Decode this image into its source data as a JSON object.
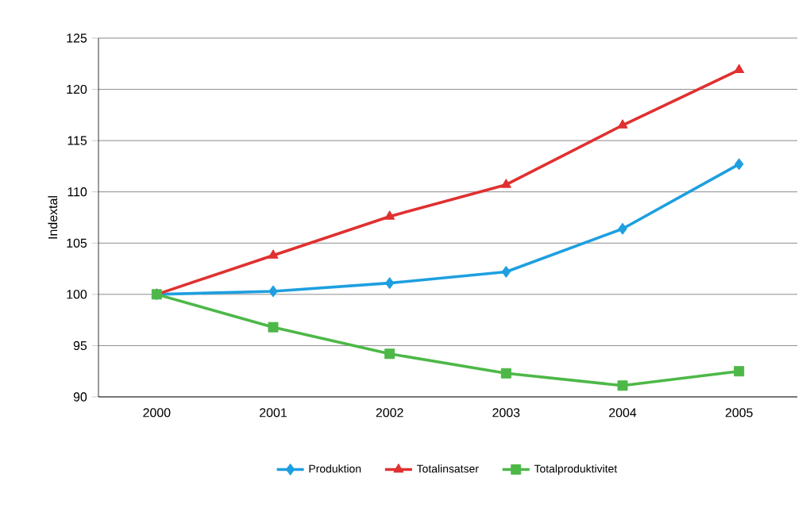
{
  "chart_data": {
    "type": "line",
    "ylabel": "Indextal",
    "categories": [
      "2000",
      "2001",
      "2002",
      "2003",
      "2004",
      "2005"
    ],
    "series": [
      {
        "name": "Produktion",
        "color": "#1e9fe0",
        "marker": "diamond",
        "values": [
          100,
          100.3,
          101.1,
          102.2,
          106.4,
          112.7
        ]
      },
      {
        "name": "Totalinsatser",
        "color": "#e03030",
        "marker": "triangle",
        "values": [
          100,
          103.8,
          107.6,
          110.7,
          116.5,
          121.9
        ]
      },
      {
        "name": "Totalproduktivitet",
        "color": "#4db848",
        "marker": "square",
        "values": [
          100,
          96.8,
          94.2,
          92.3,
          91.1,
          92.5
        ]
      }
    ],
    "ylim": [
      90,
      125
    ],
    "yticks": [
      90,
      95,
      100,
      105,
      110,
      115,
      120,
      125
    ],
    "grid": "y",
    "legend": "bottom",
    "line_style": "solid"
  }
}
